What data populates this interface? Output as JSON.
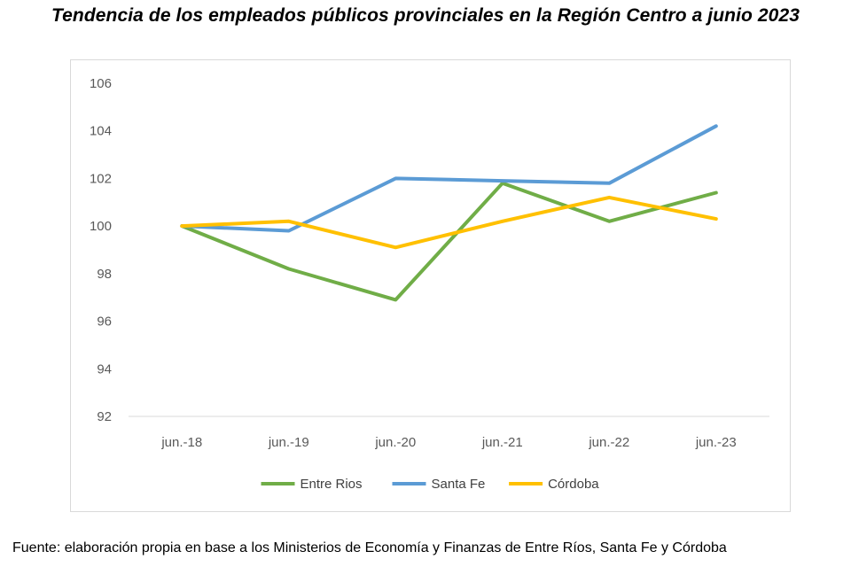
{
  "chart_data": {
    "type": "line",
    "title": "Tendencia de los empleados públicos provinciales en la Región Centro a junio 2023",
    "xlabel": "",
    "ylabel": "",
    "categories": [
      "jun.-18",
      "jun.-19",
      "jun.-20",
      "jun.-21",
      "jun.-22",
      "jun.-23"
    ],
    "ylim": [
      92,
      106
    ],
    "yticks": [
      92,
      94,
      96,
      98,
      100,
      102,
      104,
      106
    ],
    "grid": false,
    "legend_position": "bottom",
    "series": [
      {
        "name": "Entre Rios",
        "color": "#70ad47",
        "values": [
          100.0,
          98.2,
          96.9,
          101.8,
          100.2,
          101.4
        ]
      },
      {
        "name": "Santa Fe",
        "color": "#5b9bd5",
        "values": [
          100.0,
          99.8,
          102.0,
          101.9,
          101.8,
          104.2
        ]
      },
      {
        "name": "Córdoba",
        "color": "#ffc000",
        "values": [
          100.0,
          100.2,
          99.1,
          100.2,
          101.2,
          100.3
        ]
      }
    ]
  },
  "source_note": "Fuente: elaboración propia en base a los Ministerios de Economía y Finanzas de Entre Ríos, Santa Fe y Córdoba"
}
